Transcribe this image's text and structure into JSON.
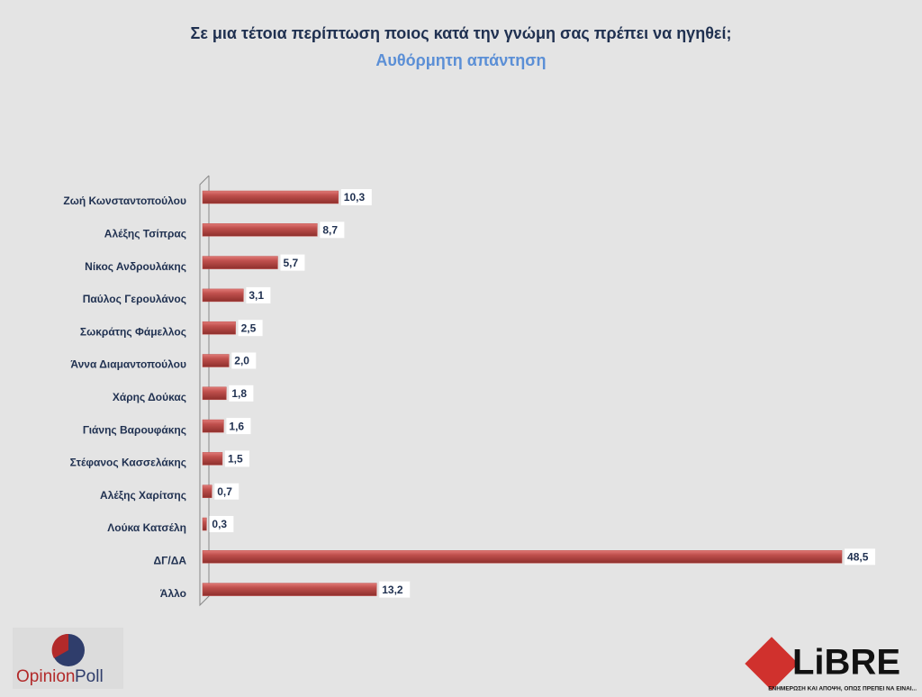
{
  "chart_data": {
    "type": "bar",
    "orientation": "horizontal",
    "title": "Σε μια τέτοια περίπτωση ποιος κατά την γνώμη σας πρέπει να ηγηθεί;",
    "subtitle": "Αυθόρμητη απάντηση",
    "categories": [
      "Ζωή Κωνσταντοπούλου",
      "Αλέξης Τσίπρας",
      "Νίκος Ανδρουλάκης",
      "Παύλος Γερουλάνος",
      "Σωκράτης Φάμελλος",
      "Άννα Διαμαντοπούλου",
      "Χάρης Δούκας",
      "Γιάνης Βαρουφάκης",
      "Στέφανος Κασσελάκης",
      "Αλέξης Χαρίτσης",
      "Λούκα Κατσέλη",
      "ΔΓ/ΔΑ",
      "Άλλο"
    ],
    "values": [
      10.3,
      8.7,
      5.7,
      3.1,
      2.5,
      2.0,
      1.8,
      1.6,
      1.5,
      0.7,
      0.3,
      48.5,
      13.2
    ],
    "value_labels": [
      "10,3",
      "8,7",
      "5,7",
      "3,1",
      "2,5",
      "2,0",
      "1,8",
      "1,6",
      "1,5",
      "0,7",
      "0,3",
      "48,5",
      "13,2"
    ],
    "color": "#c0504d",
    "xlim": [
      0,
      50
    ]
  },
  "logos": {
    "left": [
      "Opinion",
      "Poll"
    ],
    "right": "LiBRE",
    "right_tagline": "ΕΝΗΜΕΡΩΣΗ ΚΑΙ ΑΠΟΨΗ, ΟΠΩΣ ΠΡΕΠΕΙ ΝΑ ΕΙΝΑΙ..."
  }
}
